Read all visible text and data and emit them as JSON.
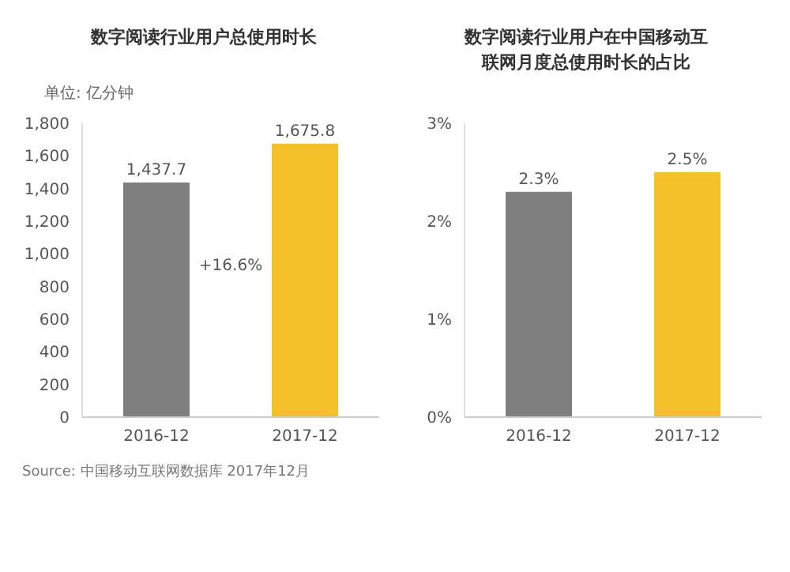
{
  "chart_data": [
    {
      "type": "bar",
      "title": "数字阅读行业用户总使用时长",
      "ylabel": "单位: 亿分钟",
      "categories": [
        "2016-12",
        "2017-12"
      ],
      "values": [
        1437.7,
        1675.8
      ],
      "colors": [
        "#7f7f7f",
        "#f5c12a"
      ],
      "ylim": [
        0,
        1800
      ],
      "yticks": [
        {
          "value": 0,
          "label": "0"
        },
        {
          "value": 200,
          "label": "200"
        },
        {
          "value": 400,
          "label": "400"
        },
        {
          "value": 600,
          "label": "600"
        },
        {
          "value": 800,
          "label": "800"
        },
        {
          "value": 1000,
          "label": "1,000"
        },
        {
          "value": 1200,
          "label": "1,200"
        },
        {
          "value": 1400,
          "label": "1,400"
        },
        {
          "value": 1600,
          "label": "1,600"
        },
        {
          "value": 1800,
          "label": "1,800"
        }
      ],
      "value_labels": [
        "1,437.7",
        "1,675.8"
      ],
      "annotations": [
        "+16.6%",
        "Source: 中国移动互联网数据库 2017年12月"
      ]
    },
    {
      "type": "bar",
      "title": "数字阅读行业用户在中国移动互联网月度总使用时长的占比",
      "categories": [
        "2016-12",
        "2017-12"
      ],
      "values": [
        2.3,
        2.5
      ],
      "colors": [
        "#7f7f7f",
        "#f5c12a"
      ],
      "ylim": [
        0,
        3
      ],
      "yticks": [
        {
          "value": 0,
          "label": "0%"
        },
        {
          "value": 1,
          "label": "1%"
        },
        {
          "value": 2,
          "label": "2%"
        },
        {
          "value": 3,
          "label": "3%"
        }
      ],
      "value_labels": [
        "2.3%",
        "2.5%"
      ]
    }
  ]
}
